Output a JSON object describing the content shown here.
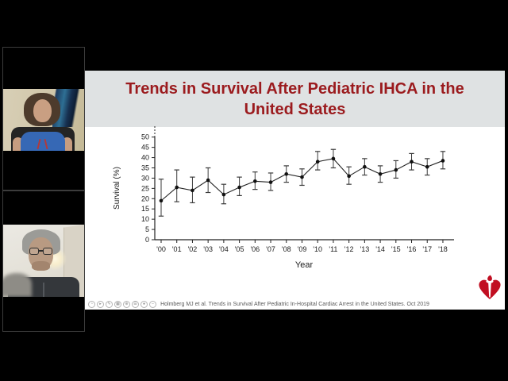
{
  "app": {
    "kind": "webinar-screen-share",
    "background_color": "#000000",
    "participant_count": 2
  },
  "slide": {
    "title": "Trends in Survival After Pediatric IHCA in the United States",
    "title_color": "#9b1b1e",
    "header_bg": "#dfe2e3",
    "body_bg": "#ffffff",
    "citation": "Holmberg MJ et al. Trends in Survival After Pediatric In-Hospital Cardiac Arrest in the United States. Oct 2019",
    "logo": "american-heart-association-heart-and-torch",
    "logo_color": "#c10e21"
  },
  "chart_data": {
    "type": "line",
    "title": "",
    "xlabel": "Year",
    "ylabel": "Survival (%)",
    "ylim": [
      0,
      50
    ],
    "ytick_step": 5,
    "grid": false,
    "legend": "none",
    "marker": "filled-circle",
    "line_color": "#222222",
    "error_bars": true,
    "categories": [
      "'00",
      "'01",
      "'02",
      "'03",
      "'04",
      "'05",
      "'06",
      "'07",
      "'08",
      "'09",
      "'10",
      "'11",
      "'12",
      "'13",
      "'14",
      "'15",
      "'16",
      "'17",
      "'18"
    ],
    "series": [
      {
        "name": "Survival",
        "values": [
          19,
          25.5,
          24,
          29,
          22,
          25.5,
          28.5,
          28,
          32,
          30.5,
          38,
          39.5,
          31,
          35.5,
          32,
          34,
          38,
          35.5,
          38.5
        ],
        "err_low": [
          11.5,
          18.5,
          18,
          23,
          17.5,
          21.5,
          24.5,
          24,
          28,
          26.5,
          34,
          35,
          27,
          31.5,
          28,
          30,
          34,
          31.5,
          34.5
        ],
        "err_high": [
          29.5,
          34,
          30.5,
          35,
          27,
          30.5,
          33,
          32.5,
          36,
          34.5,
          43,
          44,
          35.5,
          39.5,
          36,
          38.5,
          42,
          39.5,
          43
        ]
      }
    ]
  },
  "toolbar": {
    "icons": [
      {
        "name": "timer-icon",
        "glyph": "◔"
      },
      {
        "name": "play-icon",
        "glyph": "▸"
      },
      {
        "name": "pen-icon",
        "glyph": "✎"
      },
      {
        "name": "grid-icon",
        "glyph": "▦"
      },
      {
        "name": "zoom-in-icon",
        "glyph": "⊕"
      },
      {
        "name": "notes-icon",
        "glyph": "☰"
      },
      {
        "name": "record-icon",
        "glyph": "●"
      },
      {
        "name": "minimize-icon",
        "glyph": "–"
      }
    ]
  }
}
